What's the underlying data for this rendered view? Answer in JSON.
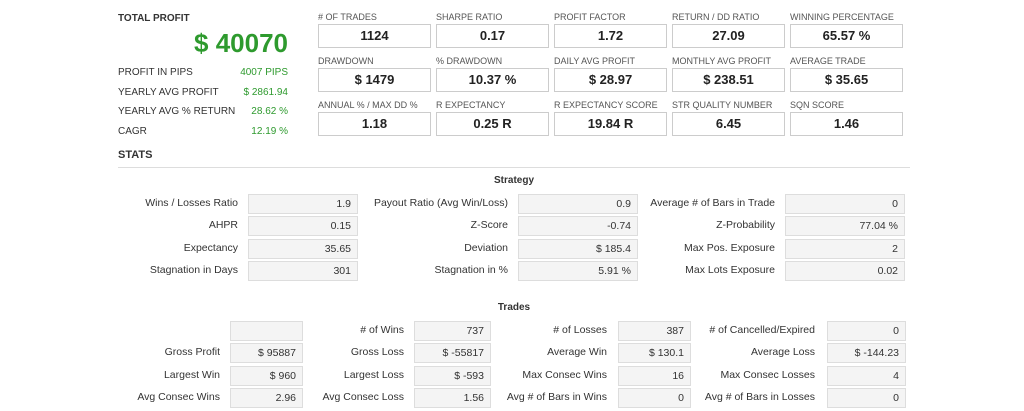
{
  "summary": {
    "title": "TOTAL PROFIT",
    "total": "$ 40070",
    "rows": [
      [
        "PROFIT IN PIPS",
        "4007 PIPS"
      ],
      [
        "YEARLY AVG PROFIT",
        "$ 2861.94"
      ],
      [
        "YEARLY AVG % RETURN",
        "28.62 %"
      ],
      [
        "CAGR",
        "12.19 %"
      ]
    ]
  },
  "metrics": [
    [
      [
        "# OF TRADES",
        "1124"
      ],
      [
        "SHARPE RATIO",
        "0.17"
      ],
      [
        "PROFIT FACTOR",
        "1.72"
      ],
      [
        "RETURN / DD RATIO",
        "27.09"
      ],
      [
        "WINNING PERCENTAGE",
        "65.57 %"
      ]
    ],
    [
      [
        "DRAWDOWN",
        "$ 1479"
      ],
      [
        "% DRAWDOWN",
        "10.37 %"
      ],
      [
        "DAILY AVG PROFIT",
        "$ 28.97"
      ],
      [
        "MONTHLY AVG PROFIT",
        "$ 238.51"
      ],
      [
        "AVERAGE TRADE",
        "$ 35.65"
      ]
    ],
    [
      [
        "ANNUAL % / MAX DD %",
        "1.18"
      ],
      [
        "R EXPECTANCY",
        "0.25 R"
      ],
      [
        "R EXPECTANCY SCORE",
        "19.84 R"
      ],
      [
        "STR QUALITY NUMBER",
        "6.45"
      ],
      [
        "SQN SCORE",
        "1.46"
      ]
    ]
  ],
  "stats_title": "STATS",
  "strategy": {
    "title": "Strategy",
    "rows": [
      [
        [
          "Wins / Losses Ratio",
          "1.9"
        ],
        [
          "Payout Ratio (Avg Win/Loss)",
          "0.9"
        ],
        [
          "Average # of Bars in Trade",
          "0"
        ]
      ],
      [
        [
          "AHPR",
          "0.15"
        ],
        [
          "Z-Score",
          "-0.74"
        ],
        [
          "Z-Probability",
          "77.04 %"
        ]
      ],
      [
        [
          "Expectancy",
          "35.65"
        ],
        [
          "Deviation",
          "$ 185.4"
        ],
        [
          "Max Pos. Exposure",
          "2"
        ]
      ],
      [
        [
          "Stagnation in Days",
          "301"
        ],
        [
          "Stagnation in %",
          "5.91 %"
        ],
        [
          "Max Lots Exposure",
          "0.02"
        ]
      ]
    ]
  },
  "trades": {
    "title": "Trades",
    "rows": [
      [
        null,
        [
          "# of Wins",
          "737"
        ],
        [
          "# of Losses",
          "387"
        ],
        [
          "# of Cancelled/Expired",
          "0"
        ]
      ],
      [
        [
          "Gross Profit",
          "$ 95887"
        ],
        [
          "Gross Loss",
          "$ -55817"
        ],
        [
          "Average Win",
          "$ 130.1"
        ],
        [
          "Average Loss",
          "$ -144.23"
        ]
      ],
      [
        [
          "Largest Win",
          "$ 960"
        ],
        [
          "Largest Loss",
          "$ -593"
        ],
        [
          "Max Consec Wins",
          "16"
        ],
        [
          "Max Consec Losses",
          "4"
        ]
      ],
      [
        [
          "Avg Consec Wins",
          "2.96"
        ],
        [
          "Avg Consec Loss",
          "1.56"
        ],
        [
          "Avg # of Bars in Wins",
          "0"
        ],
        [
          "Avg # of Bars in Losses",
          "0"
        ]
      ]
    ]
  }
}
